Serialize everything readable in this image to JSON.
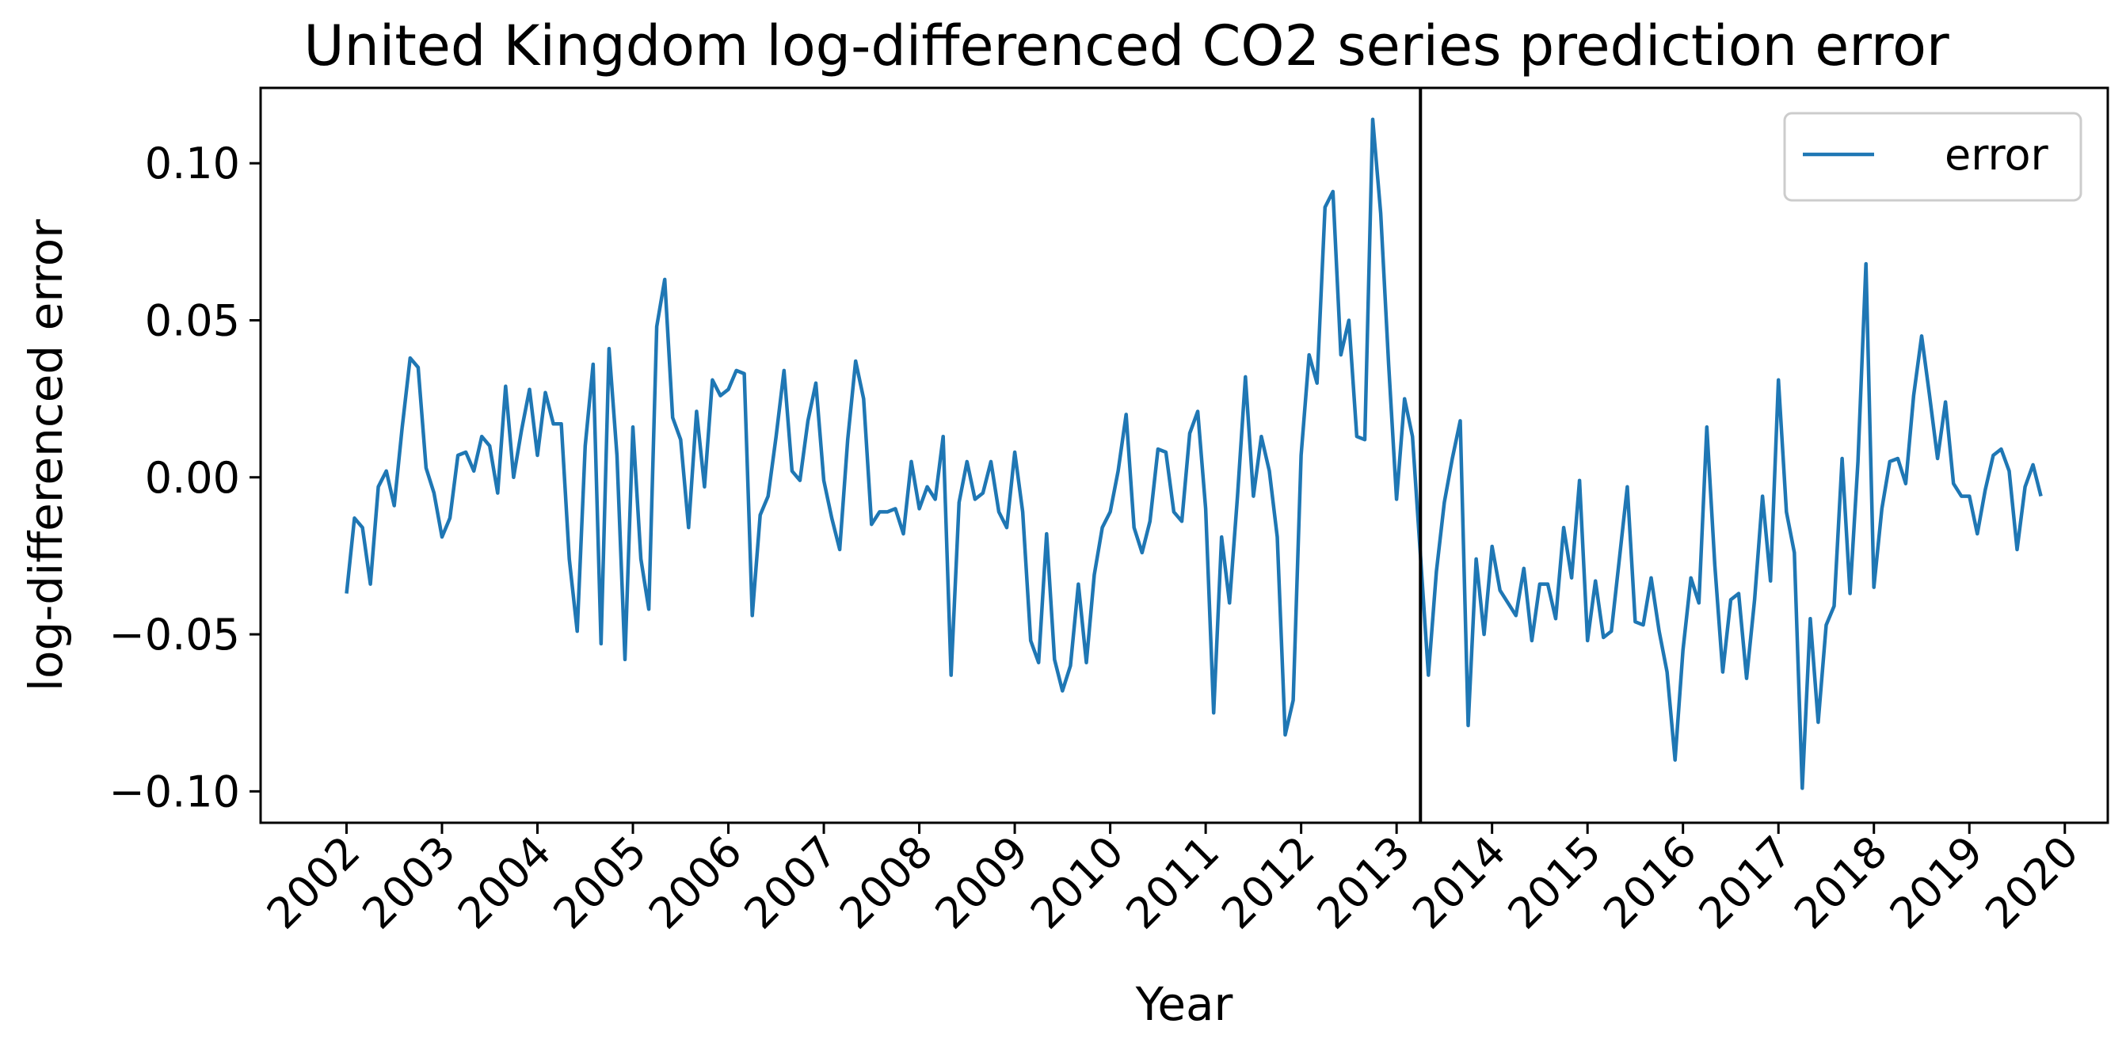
{
  "chart_data": {
    "type": "line",
    "title": "United Kingdom log-differenced CO2 series prediction error",
    "xlabel": "Year",
    "ylabel": "log-differenced error",
    "xlim": [
      2001.1,
      2020.45
    ],
    "ylim": [
      -0.11,
      0.124
    ],
    "x_ticks": [
      2002,
      2003,
      2004,
      2005,
      2006,
      2007,
      2008,
      2009,
      2010,
      2011,
      2012,
      2013,
      2014,
      2015,
      2016,
      2017,
      2018,
      2019,
      2020
    ],
    "y_ticks": [
      -0.1,
      -0.05,
      0.0,
      0.05,
      0.1
    ],
    "y_tick_labels": [
      "−0.10",
      "−0.05",
      "0.00",
      "0.05",
      "0.10"
    ],
    "grid": false,
    "legend_position": "top-right",
    "vertical_line": {
      "x": 2013.25,
      "color": "#000000"
    },
    "series": [
      {
        "name": "error",
        "color": "#1f77b4",
        "start": "2002-01",
        "frequency": "monthly",
        "values": [
          -0.037,
          -0.013,
          -0.016,
          -0.034,
          -0.003,
          0.002,
          -0.009,
          0.016,
          0.038,
          0.035,
          0.003,
          -0.005,
          -0.019,
          -0.013,
          0.007,
          0.008,
          0.002,
          0.013,
          0.01,
          -0.005,
          0.029,
          0.0,
          0.015,
          0.028,
          0.007,
          0.027,
          0.017,
          0.017,
          -0.026,
          -0.049,
          0.01,
          0.036,
          -0.053,
          0.041,
          0.007,
          -0.058,
          0.016,
          -0.026,
          -0.042,
          0.048,
          0.063,
          0.019,
          0.012,
          -0.016,
          0.021,
          -0.003,
          0.031,
          0.026,
          0.028,
          0.034,
          0.033,
          -0.044,
          -0.012,
          -0.006,
          0.013,
          0.034,
          0.002,
          -0.001,
          0.018,
          0.03,
          -0.001,
          -0.013,
          -0.023,
          0.012,
          0.037,
          0.025,
          -0.015,
          -0.011,
          -0.011,
          -0.01,
          -0.018,
          0.005,
          -0.01,
          -0.003,
          -0.007,
          0.013,
          -0.063,
          -0.008,
          0.005,
          -0.007,
          -0.005,
          0.005,
          -0.011,
          -0.016,
          0.008,
          -0.011,
          -0.052,
          -0.059,
          -0.018,
          -0.058,
          -0.068,
          -0.06,
          -0.034,
          -0.059,
          -0.031,
          -0.016,
          -0.011,
          0.002,
          0.02,
          -0.016,
          -0.024,
          -0.014,
          0.009,
          0.008,
          -0.011,
          -0.014,
          0.014,
          0.021,
          -0.01,
          -0.075,
          -0.019,
          -0.04,
          -0.006,
          0.032,
          -0.006,
          0.013,
          0.002,
          -0.019,
          -0.082,
          -0.071,
          0.007,
          0.039,
          0.03,
          0.086,
          0.091,
          0.039,
          0.05,
          0.013,
          0.012,
          0.114,
          0.084,
          0.036,
          -0.007,
          0.025,
          0.013,
          -0.025,
          -0.063,
          -0.03,
          -0.008,
          0.006,
          0.018,
          -0.079,
          -0.026,
          -0.05,
          -0.022,
          -0.036,
          -0.04,
          -0.044,
          -0.029,
          -0.052,
          -0.034,
          -0.034,
          -0.045,
          -0.016,
          -0.032,
          -0.001,
          -0.052,
          -0.033,
          -0.051,
          -0.049,
          -0.026,
          -0.003,
          -0.046,
          -0.047,
          -0.032,
          -0.049,
          -0.062,
          -0.09,
          -0.055,
          -0.032,
          -0.04,
          0.016,
          -0.028,
          -0.062,
          -0.039,
          -0.037,
          -0.064,
          -0.039,
          -0.006,
          -0.033,
          0.031,
          -0.011,
          -0.024,
          -0.099,
          -0.045,
          -0.078,
          -0.047,
          -0.041,
          0.006,
          -0.037,
          0.005,
          0.068,
          -0.035,
          -0.01,
          0.005,
          0.006,
          -0.002,
          0.026,
          0.045,
          0.026,
          0.006,
          0.024,
          -0.002,
          -0.006,
          -0.006,
          -0.018,
          -0.004,
          0.007,
          0.009,
          0.002,
          -0.023,
          -0.003,
          0.004,
          -0.006
        ]
      }
    ]
  }
}
